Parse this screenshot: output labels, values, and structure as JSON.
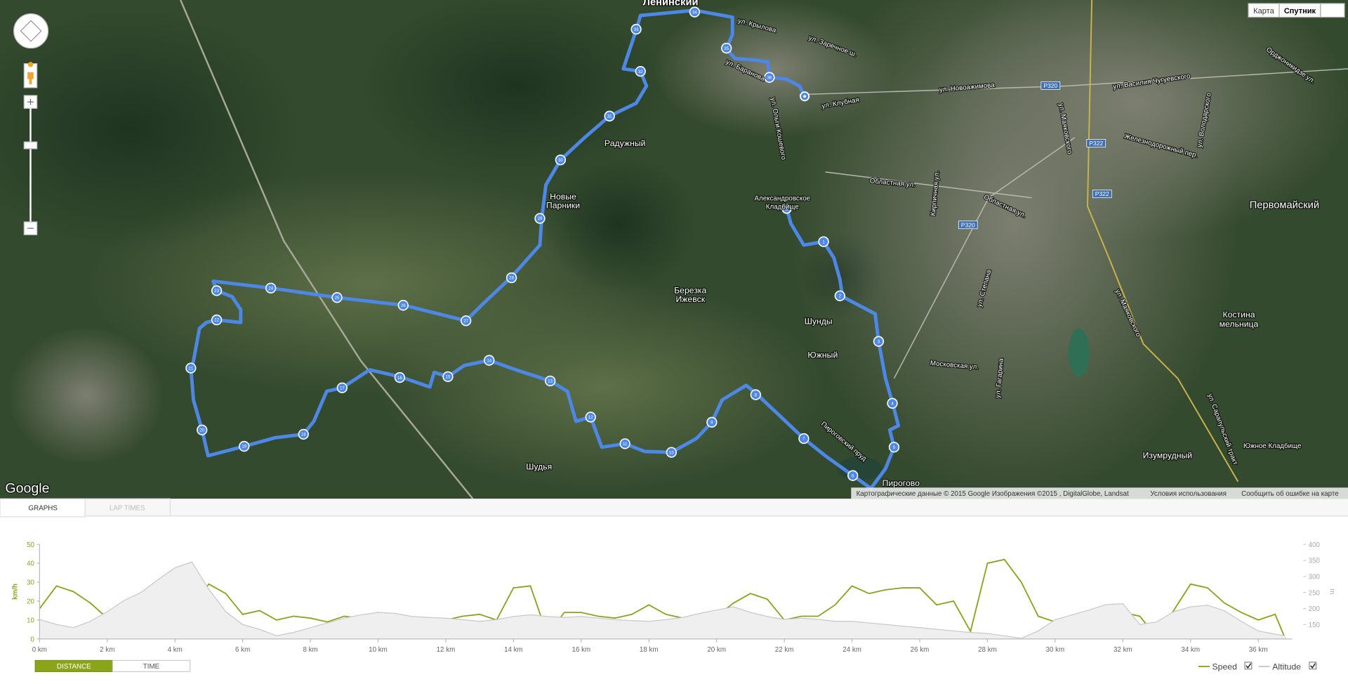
{
  "map": {
    "buttons": [
      "Карта",
      "Спутник"
    ],
    "labels": [
      "Ленинский",
      "Радужный",
      "Новые",
      "Парники",
      "Березка",
      "Ижевск",
      "Шунды",
      "Южный",
      "Пирогово",
      "Шудья",
      "Первомайский",
      "Костина",
      "мельница",
      "Изумрудный",
      "Александровское",
      "Кладбище",
      "Южное Кладбище",
      "ул. Крылова",
      "ул. Заречное ш.",
      "ул. Новоажимова",
      "ул. Клубная",
      "ул. Баранова",
      "ул. Ольги Кошевого",
      "Областная ул.",
      "Областная ул.",
      "ул. Василия Чугуевского",
      "Железнодорожный пер.",
      "ул. Маяковского",
      "ул. Маяковского",
      "Московская ул.",
      "ул. Гагарина",
      "ул. Степана",
      "Кирпичная ул.",
      "Пироговский пруд",
      "ул. Сарапульский тракт",
      "Орджоникидзе ул.",
      "ул. Володарского",
      "P320",
      "P322",
      "P322",
      "P320"
    ],
    "route_markers": [
      "1",
      "2",
      "3",
      "4",
      "5",
      "6",
      "7",
      "8",
      "9",
      "10",
      "11",
      "12",
      "13",
      "14",
      "15",
      "16",
      "17",
      "18",
      "19",
      "20",
      "21",
      "22",
      "23",
      "24",
      "25",
      "26",
      "27",
      "28",
      "29",
      "30",
      "31",
      "32",
      "33",
      "34",
      "35",
      "36"
    ],
    "logo": "Google",
    "attribution": "Картографические данные © 2015 Google Изображения ©2015 , DigitalGlobe, Landsat",
    "terms": "Условия использования",
    "report": "Сообщить об ошибке на карте"
  },
  "tabs": [
    "GRAPHS",
    "LAP TIMES"
  ],
  "modes": [
    "DISTANCE",
    "TIME"
  ],
  "chart_data": {
    "type": "line",
    "y_label": "km/h",
    "y2_label": "m",
    "x": [
      0,
      0.5,
      1,
      1.5,
      2,
      2.5,
      3,
      3.5,
      4,
      4.5,
      5,
      5.5,
      6,
      6.5,
      7,
      7.5,
      8,
      8.5,
      9,
      9.5,
      10,
      10.5,
      11,
      11.5,
      12,
      12.5,
      13,
      13.5,
      14,
      14.5,
      15,
      15.5,
      16,
      16.5,
      17,
      17.5,
      18,
      18.5,
      19,
      19.5,
      20,
      20.5,
      21,
      21.5,
      22,
      22.5,
      23,
      23.5,
      24,
      24.5,
      25,
      25.5,
      26,
      26.5,
      27,
      27.5,
      28,
      28.5,
      29,
      29.5,
      30,
      30.5,
      31,
      31.5,
      32,
      32.5,
      33,
      33.5,
      34,
      34.5,
      35,
      35.5,
      36,
      36.5,
      36.8
    ],
    "xlim": [
      0,
      37
    ],
    "xticks": [
      {
        "value": 0,
        "label": "0 km"
      },
      {
        "value": 2,
        "label": "2 km"
      },
      {
        "value": 4,
        "label": "4 km"
      },
      {
        "value": 6,
        "label": "6 km"
      },
      {
        "value": 8,
        "label": "8 km"
      },
      {
        "value": 10,
        "label": "10 km"
      },
      {
        "value": 12,
        "label": "12 km"
      },
      {
        "value": 14,
        "label": "14 km"
      },
      {
        "value": 16,
        "label": "16 km"
      },
      {
        "value": 18,
        "label": "18 km"
      },
      {
        "value": 20,
        "label": "20 km"
      },
      {
        "value": 22,
        "label": "22 km"
      },
      {
        "value": 24,
        "label": "24 km"
      },
      {
        "value": 26,
        "label": "26 km"
      },
      {
        "value": 28,
        "label": "28 km"
      },
      {
        "value": 30,
        "label": "30 km"
      },
      {
        "value": 32,
        "label": "32 km"
      },
      {
        "value": 34,
        "label": "34 km"
      },
      {
        "value": 36,
        "label": "36 km"
      }
    ],
    "ylim": [
      0,
      50
    ],
    "yticks": [
      0,
      10,
      20,
      30,
      40,
      50
    ],
    "y2lim": [
      105,
      400
    ],
    "y2ticks": [
      150,
      200,
      250,
      300,
      350,
      400
    ],
    "series": [
      {
        "name": "Speed",
        "color": "#8aa51a",
        "values": [
          16,
          28,
          25,
          19,
          11,
          11,
          17,
          13,
          20,
          17,
          29,
          24,
          13,
          15,
          10,
          12,
          11,
          9,
          12,
          11,
          14,
          11,
          10,
          11,
          10,
          12,
          13,
          10,
          27,
          28,
          2,
          14,
          14,
          12,
          11,
          13,
          18,
          13,
          11,
          11,
          12,
          19,
          24,
          21,
          10,
          12,
          12,
          18,
          28,
          24,
          26,
          27,
          27,
          18,
          20,
          4,
          40,
          42,
          30,
          12,
          9,
          10,
          10,
          10,
          14,
          12,
          1,
          15,
          29,
          27,
          19,
          14,
          10,
          13,
          0
        ]
      },
      {
        "name": "Altitude",
        "color": "#c8c8c8",
        "axis": "y2",
        "values": [
          166,
          150,
          140,
          160,
          190,
          225,
          250,
          290,
          327,
          345,
          260,
          190,
          150,
          135,
          115,
          125,
          140,
          155,
          170,
          180,
          188,
          185,
          175,
          172,
          170,
          165,
          160,
          165,
          175,
          180,
          175,
          172,
          175,
          170,
          165,
          162,
          160,
          165,
          172,
          185,
          195,
          205,
          188,
          175,
          166,
          170,
          166,
          160,
          160,
          155,
          150,
          145,
          140,
          135,
          130,
          125,
          122,
          115,
          107,
          130,
          165,
          180,
          195,
          212,
          215,
          150,
          158,
          190,
          205,
          210,
          193,
          160,
          130,
          120,
          115
        ]
      }
    ]
  }
}
